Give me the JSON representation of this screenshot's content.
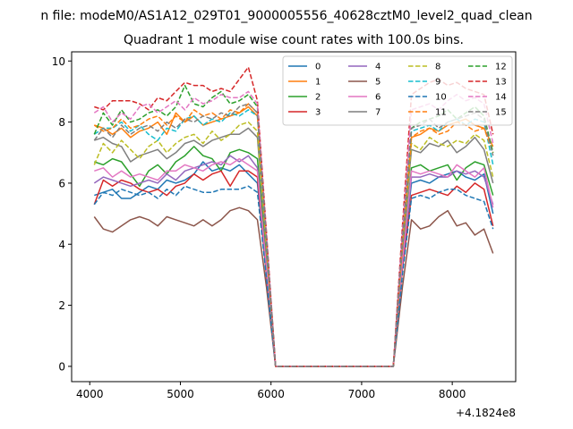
{
  "suptitle": "n file: modeM0/AS1A12_029T01_9000005556_40628cztM0_level2_quad_clean",
  "chart_data": {
    "type": "line",
    "title": "Quadrant 1 module wise count rates with 100.0s bins.",
    "xlabel": "",
    "ylabel": "",
    "x_offset_label": "+4.1824e8",
    "xlim": [
      3800,
      8700
    ],
    "ylim": [
      -0.5,
      10.3
    ],
    "xticks": [
      4000,
      5000,
      6000,
      7000,
      8000
    ],
    "yticks": [
      0,
      2,
      4,
      6,
      8,
      10
    ],
    "grid": false,
    "legend_position": "top-right",
    "x": [
      4050,
      4150,
      4250,
      4350,
      4450,
      4550,
      4650,
      4750,
      4850,
      4950,
      5050,
      5150,
      5250,
      5350,
      5450,
      5550,
      5650,
      5750,
      5850,
      5950,
      6050,
      6150,
      6250,
      6350,
      6450,
      6550,
      6650,
      6750,
      6850,
      6950,
      7050,
      7150,
      7250,
      7350,
      7450,
      7550,
      7650,
      7750,
      7850,
      7950,
      8050,
      8150,
      8250,
      8350,
      8450
    ],
    "series": [
      {
        "name": "0",
        "color": "#1f77b4",
        "dash": "solid",
        "values": [
          5.6,
          5.7,
          5.8,
          5.5,
          5.5,
          5.7,
          5.9,
          5.8,
          6.1,
          6.0,
          6.1,
          6.3,
          6.7,
          6.4,
          6.5,
          6.4,
          6.6,
          6.3,
          6.0,
          3.0,
          0,
          0,
          0,
          0,
          0,
          0,
          0,
          0,
          0,
          0,
          0,
          0,
          0,
          0,
          3.5,
          6.0,
          6.1,
          6.0,
          6.2,
          6.3,
          6.4,
          6.2,
          6.1,
          6.3,
          5.0
        ]
      },
      {
        "name": "1",
        "color": "#ff7f0e",
        "dash": "solid",
        "values": [
          7.9,
          7.8,
          7.6,
          7.8,
          7.5,
          7.7,
          7.8,
          8.0,
          7.6,
          8.3,
          8.0,
          8.2,
          7.9,
          8.0,
          8.1,
          8.2,
          8.3,
          8.5,
          8.2,
          4.0,
          0,
          0,
          0,
          0,
          0,
          0,
          0,
          0,
          0,
          0,
          0,
          0,
          0,
          0,
          4.0,
          7.5,
          7.6,
          7.8,
          7.7,
          7.9,
          8.0,
          8.1,
          7.9,
          7.8,
          7.2
        ]
      },
      {
        "name": "2",
        "color": "#2ca02c",
        "dash": "solid",
        "values": [
          6.7,
          6.6,
          6.8,
          6.7,
          6.3,
          5.9,
          6.4,
          6.6,
          6.3,
          6.7,
          6.9,
          7.2,
          6.9,
          6.8,
          6.4,
          7.0,
          7.1,
          7.0,
          6.8,
          3.5,
          0,
          0,
          0,
          0,
          0,
          0,
          0,
          0,
          0,
          0,
          0,
          0,
          0,
          0,
          3.6,
          6.5,
          6.6,
          6.4,
          6.5,
          6.6,
          6.1,
          6.5,
          6.7,
          6.6,
          5.6
        ]
      },
      {
        "name": "3",
        "color": "#d62728",
        "dash": "solid",
        "values": [
          5.3,
          6.1,
          5.9,
          6.1,
          6.0,
          5.8,
          5.7,
          5.8,
          5.6,
          5.9,
          6.0,
          6.3,
          6.1,
          6.3,
          6.4,
          5.9,
          6.4,
          6.4,
          6.2,
          3.0,
          0,
          0,
          0,
          0,
          0,
          0,
          0,
          0,
          0,
          0,
          0,
          0,
          0,
          0,
          3.2,
          5.6,
          5.7,
          5.8,
          5.7,
          5.6,
          5.9,
          5.7,
          6.0,
          5.8,
          4.6
        ]
      },
      {
        "name": "4",
        "color": "#9467bd",
        "dash": "solid",
        "values": [
          6.0,
          6.2,
          6.1,
          6.0,
          5.9,
          6.0,
          6.1,
          6.0,
          6.3,
          6.1,
          6.4,
          6.5,
          6.6,
          6.7,
          6.6,
          6.9,
          6.7,
          6.9,
          6.5,
          3.2,
          0,
          0,
          0,
          0,
          0,
          0,
          0,
          0,
          0,
          0,
          0,
          0,
          0,
          0,
          3.4,
          6.2,
          6.2,
          6.3,
          6.2,
          6.2,
          6.4,
          6.3,
          6.4,
          6.2,
          5.3
        ]
      },
      {
        "name": "5",
        "color": "#8c564b",
        "dash": "solid",
        "values": [
          4.9,
          4.5,
          4.4,
          4.6,
          4.8,
          4.9,
          4.8,
          4.6,
          4.9,
          4.8,
          4.7,
          4.6,
          4.8,
          4.6,
          4.8,
          5.1,
          5.2,
          5.1,
          4.8,
          2.6,
          0,
          0,
          0,
          0,
          0,
          0,
          0,
          0,
          0,
          0,
          0,
          0,
          0,
          0,
          2.6,
          4.8,
          4.5,
          4.6,
          4.9,
          5.1,
          4.6,
          4.7,
          4.3,
          4.5,
          3.7
        ]
      },
      {
        "name": "6",
        "color": "#e377c2",
        "dash": "solid",
        "values": [
          6.4,
          6.5,
          6.2,
          6.4,
          6.2,
          6.3,
          6.2,
          6.1,
          6.4,
          6.4,
          6.6,
          6.5,
          6.4,
          6.6,
          6.7,
          6.6,
          6.8,
          6.6,
          6.4,
          3.2,
          0,
          0,
          0,
          0,
          0,
          0,
          0,
          0,
          0,
          0,
          0,
          0,
          0,
          0,
          3.4,
          6.4,
          6.3,
          6.4,
          6.3,
          6.2,
          6.6,
          6.4,
          6.2,
          6.5,
          5.2
        ]
      },
      {
        "name": "7",
        "color": "#7f7f7f",
        "dash": "solid",
        "values": [
          7.4,
          7.5,
          7.3,
          7.2,
          6.7,
          6.9,
          7.0,
          7.1,
          6.8,
          7.0,
          7.3,
          7.4,
          7.2,
          7.4,
          7.5,
          7.6,
          7.6,
          7.8,
          7.5,
          3.8,
          0,
          0,
          0,
          0,
          0,
          0,
          0,
          0,
          0,
          0,
          0,
          0,
          0,
          0,
          3.9,
          7.1,
          7.0,
          7.3,
          7.2,
          7.4,
          7.0,
          7.2,
          7.5,
          7.1,
          6.0
        ]
      },
      {
        "name": "8",
        "color": "#bcbd22",
        "dash": "dashed",
        "values": [
          6.6,
          7.3,
          7.0,
          7.4,
          7.1,
          6.8,
          7.2,
          7.4,
          7.0,
          7.3,
          7.5,
          7.6,
          7.3,
          7.7,
          7.4,
          7.6,
          7.9,
          8.0,
          7.7,
          3.9,
          0,
          0,
          0,
          0,
          0,
          0,
          0,
          0,
          0,
          0,
          0,
          0,
          0,
          0,
          4.0,
          7.3,
          7.1,
          7.5,
          7.3,
          7.2,
          7.4,
          7.3,
          7.6,
          7.4,
          6.2
        ]
      },
      {
        "name": "9",
        "color": "#17becf",
        "dash": "dashed",
        "values": [
          7.6,
          7.8,
          7.8,
          8.0,
          7.7,
          7.9,
          7.6,
          7.4,
          7.8,
          7.7,
          8.1,
          8.2,
          7.9,
          8.1,
          8.0,
          8.3,
          8.2,
          8.4,
          8.2,
          4.1,
          0,
          0,
          0,
          0,
          0,
          0,
          0,
          0,
          0,
          0,
          0,
          0,
          0,
          0,
          4.2,
          7.7,
          7.8,
          7.9,
          7.7,
          8.0,
          8.1,
          7.9,
          8.1,
          8.0,
          6.6
        ]
      },
      {
        "name": "10",
        "color": "#1f77b4",
        "dash": "dashed",
        "values": [
          5.3,
          5.7,
          5.6,
          5.8,
          5.7,
          5.6,
          5.7,
          5.5,
          5.8,
          5.6,
          5.9,
          5.8,
          5.7,
          5.7,
          5.8,
          5.8,
          5.8,
          5.9,
          5.7,
          2.9,
          0,
          0,
          0,
          0,
          0,
          0,
          0,
          0,
          0,
          0,
          0,
          0,
          0,
          0,
          3.0,
          5.5,
          5.6,
          5.5,
          5.7,
          5.8,
          5.8,
          5.6,
          5.5,
          5.4,
          4.5
        ]
      },
      {
        "name": "11",
        "color": "#ff7f0e",
        "dash": "dashed",
        "values": [
          7.9,
          7.7,
          7.8,
          8.1,
          7.8,
          7.9,
          8.1,
          8.2,
          7.9,
          8.2,
          8.0,
          8.4,
          8.2,
          8.3,
          8.1,
          8.4,
          8.3,
          8.6,
          8.3,
          4.1,
          0,
          0,
          0,
          0,
          0,
          0,
          0,
          0,
          0,
          0,
          0,
          0,
          0,
          0,
          4.1,
          7.5,
          7.7,
          7.8,
          7.6,
          7.7,
          8.0,
          7.9,
          7.7,
          7.8,
          7.0
        ]
      },
      {
        "name": "12",
        "color": "#2ca02c",
        "dash": "dashed",
        "values": [
          7.6,
          8.3,
          7.9,
          8.4,
          8.0,
          8.1,
          8.3,
          8.4,
          8.2,
          8.5,
          9.2,
          8.6,
          8.5,
          8.8,
          9.0,
          8.6,
          8.7,
          8.9,
          8.5,
          4.2,
          0,
          0,
          0,
          0,
          0,
          0,
          0,
          0,
          0,
          0,
          0,
          0,
          0,
          0,
          4.3,
          7.8,
          8.0,
          8.1,
          8.2,
          8.4,
          8.1,
          8.3,
          8.5,
          8.2,
          7.0
        ]
      },
      {
        "name": "13",
        "color": "#d62728",
        "dash": "dashed",
        "values": [
          8.5,
          8.4,
          8.7,
          8.7,
          8.7,
          8.6,
          8.4,
          8.8,
          8.7,
          9.0,
          9.3,
          9.2,
          9.2,
          9.0,
          9.1,
          9.0,
          9.4,
          9.8,
          8.7,
          4.4,
          0,
          0,
          0,
          0,
          0,
          0,
          0,
          0,
          0,
          0,
          0,
          0,
          0,
          0,
          4.6,
          8.9,
          9.1,
          9.3,
          9.4,
          9.2,
          9.3,
          9.1,
          9.0,
          8.9,
          7.6
        ]
      },
      {
        "name": "14",
        "color": "#e377c2",
        "dash": "dashed",
        "values": [
          8.3,
          8.5,
          8.0,
          8.3,
          8.1,
          8.5,
          8.6,
          8.3,
          8.5,
          8.7,
          8.4,
          8.8,
          8.6,
          8.7,
          8.9,
          8.8,
          8.8,
          9.0,
          8.6,
          4.3,
          0,
          0,
          0,
          0,
          0,
          0,
          0,
          0,
          0,
          0,
          0,
          0,
          0,
          0,
          4.4,
          8.4,
          8.5,
          8.6,
          8.4,
          8.7,
          8.9,
          8.7,
          8.8,
          8.6,
          7.3
        ]
      },
      {
        "name": "15",
        "color": "#7f7f7f",
        "dash": "dashed",
        "values": [
          7.4,
          7.8,
          7.5,
          7.9,
          7.6,
          7.8,
          7.9,
          7.7,
          8.0,
          7.8,
          8.1,
          8.0,
          8.2,
          8.1,
          8.3,
          8.2,
          8.5,
          8.6,
          8.3,
          4.2,
          0,
          0,
          0,
          0,
          0,
          0,
          0,
          0,
          0,
          0,
          0,
          0,
          0,
          0,
          4.2,
          7.8,
          7.9,
          8.1,
          7.8,
          8.0,
          8.1,
          8.2,
          8.3,
          8.1,
          6.9
        ]
      }
    ]
  }
}
